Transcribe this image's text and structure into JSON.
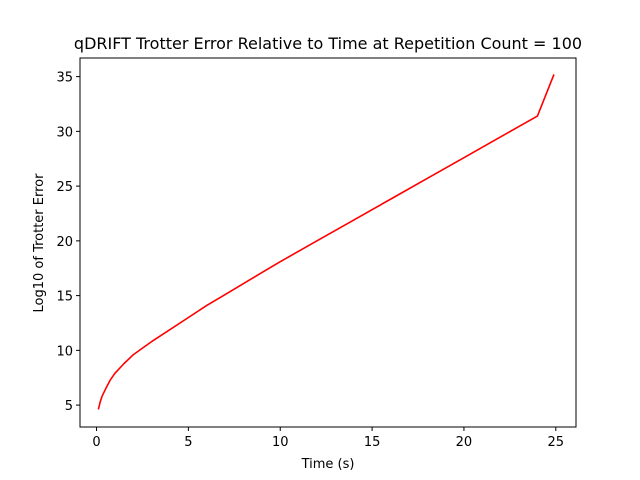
{
  "chart_data": {
    "type": "line",
    "title": "qDRIFT Trotter Error Relative to Time at Repetition Count = 100",
    "xlabel": "Time (s)",
    "ylabel": "Log10 of Trotter Error",
    "xlim": [
      -0.9,
      26.1
    ],
    "ylim": [
      3.0,
      36.7
    ],
    "xticks": [
      0,
      5,
      10,
      15,
      20,
      25
    ],
    "yticks": [
      5,
      10,
      15,
      20,
      25,
      30,
      35
    ],
    "grid": false,
    "series": [
      {
        "color": "#ff0000",
        "x": [
          0.1,
          0.2,
          0.3,
          0.5,
          0.75,
          1.0,
          1.5,
          2.0,
          2.5,
          3.0,
          4.0,
          5.0,
          6.0,
          7.0,
          8.0,
          9.0,
          10.0,
          12.0,
          14.0,
          16.0,
          18.0,
          20.0,
          22.0,
          24.0,
          24.9
        ],
        "y": [
          4.6,
          5.3,
          5.8,
          6.5,
          7.3,
          7.9,
          8.8,
          9.6,
          10.2,
          10.8,
          11.9,
          13.0,
          14.1,
          15.1,
          16.1,
          17.1,
          18.1,
          20.0,
          21.9,
          23.8,
          25.7,
          27.6,
          29.5,
          31.4,
          35.2
        ]
      }
    ]
  }
}
